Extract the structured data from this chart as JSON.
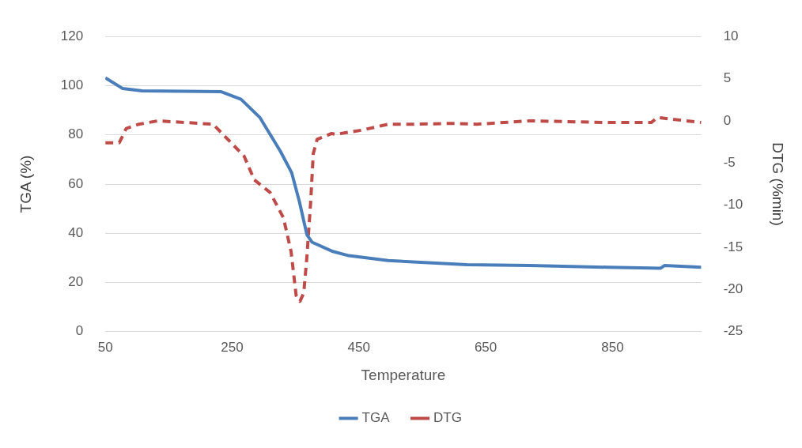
{
  "chart_data": {
    "type": "line",
    "xlabel": "Temperature",
    "ylabel": "TGA (%)",
    "y2label": "DTG (%min)",
    "xlim": [
      50,
      990
    ],
    "xticks": [
      50,
      250,
      450,
      650,
      850
    ],
    "ylim": [
      0,
      120
    ],
    "yticks": [
      0,
      20,
      40,
      60,
      80,
      100,
      120
    ],
    "y2lim": [
      -25,
      10
    ],
    "y2ticks": [
      -25,
      -20,
      -15,
      -10,
      -5,
      0,
      5,
      10
    ],
    "grid": "y",
    "legend": "bottom",
    "marker": "none",
    "series": [
      {
        "name": "TGA",
        "color": "#4a7ebb",
        "line_style": "solid",
        "x": [
          50,
          77,
          108,
          232,
          264,
          294,
          326,
          344,
          356,
          368,
          376,
          409,
          434,
          496,
          620,
          719,
          843,
          926,
          932,
          990
        ],
        "values": [
          103.2,
          98.9,
          97.9,
          97.6,
          94.5,
          87,
          73.4,
          64.6,
          53,
          39.4,
          36.4,
          32.6,
          30.9,
          28.9,
          27.2,
          26.9,
          26.2,
          25.8,
          26.9,
          26.2
        ]
      },
      {
        "name": "DTG",
        "color": "#be4b48",
        "line_style": "dashed",
        "axis": "y2",
        "x": [
          50,
          72,
          83,
          103,
          133,
          178,
          220,
          242,
          269,
          285,
          310,
          331,
          343,
          351,
          357,
          363,
          368,
          374,
          378,
          384,
          407,
          413,
          455,
          496,
          537,
          599,
          636,
          719,
          843,
          911,
          921,
          990
        ],
        "values": [
          -2.6,
          -2.6,
          -0.9,
          -0.4,
          0,
          -0.2,
          -0.4,
          -2.1,
          -4.2,
          -7,
          -8.5,
          -11.5,
          -15.5,
          -20.7,
          -21.4,
          -20.4,
          -16.1,
          -9.5,
          -3.9,
          -2.2,
          -1.5,
          -1.6,
          -1.1,
          -0.4,
          -0.4,
          -0.3,
          -0.4,
          0,
          -0.2,
          -0.2,
          0.4,
          -0.2
        ]
      }
    ]
  }
}
